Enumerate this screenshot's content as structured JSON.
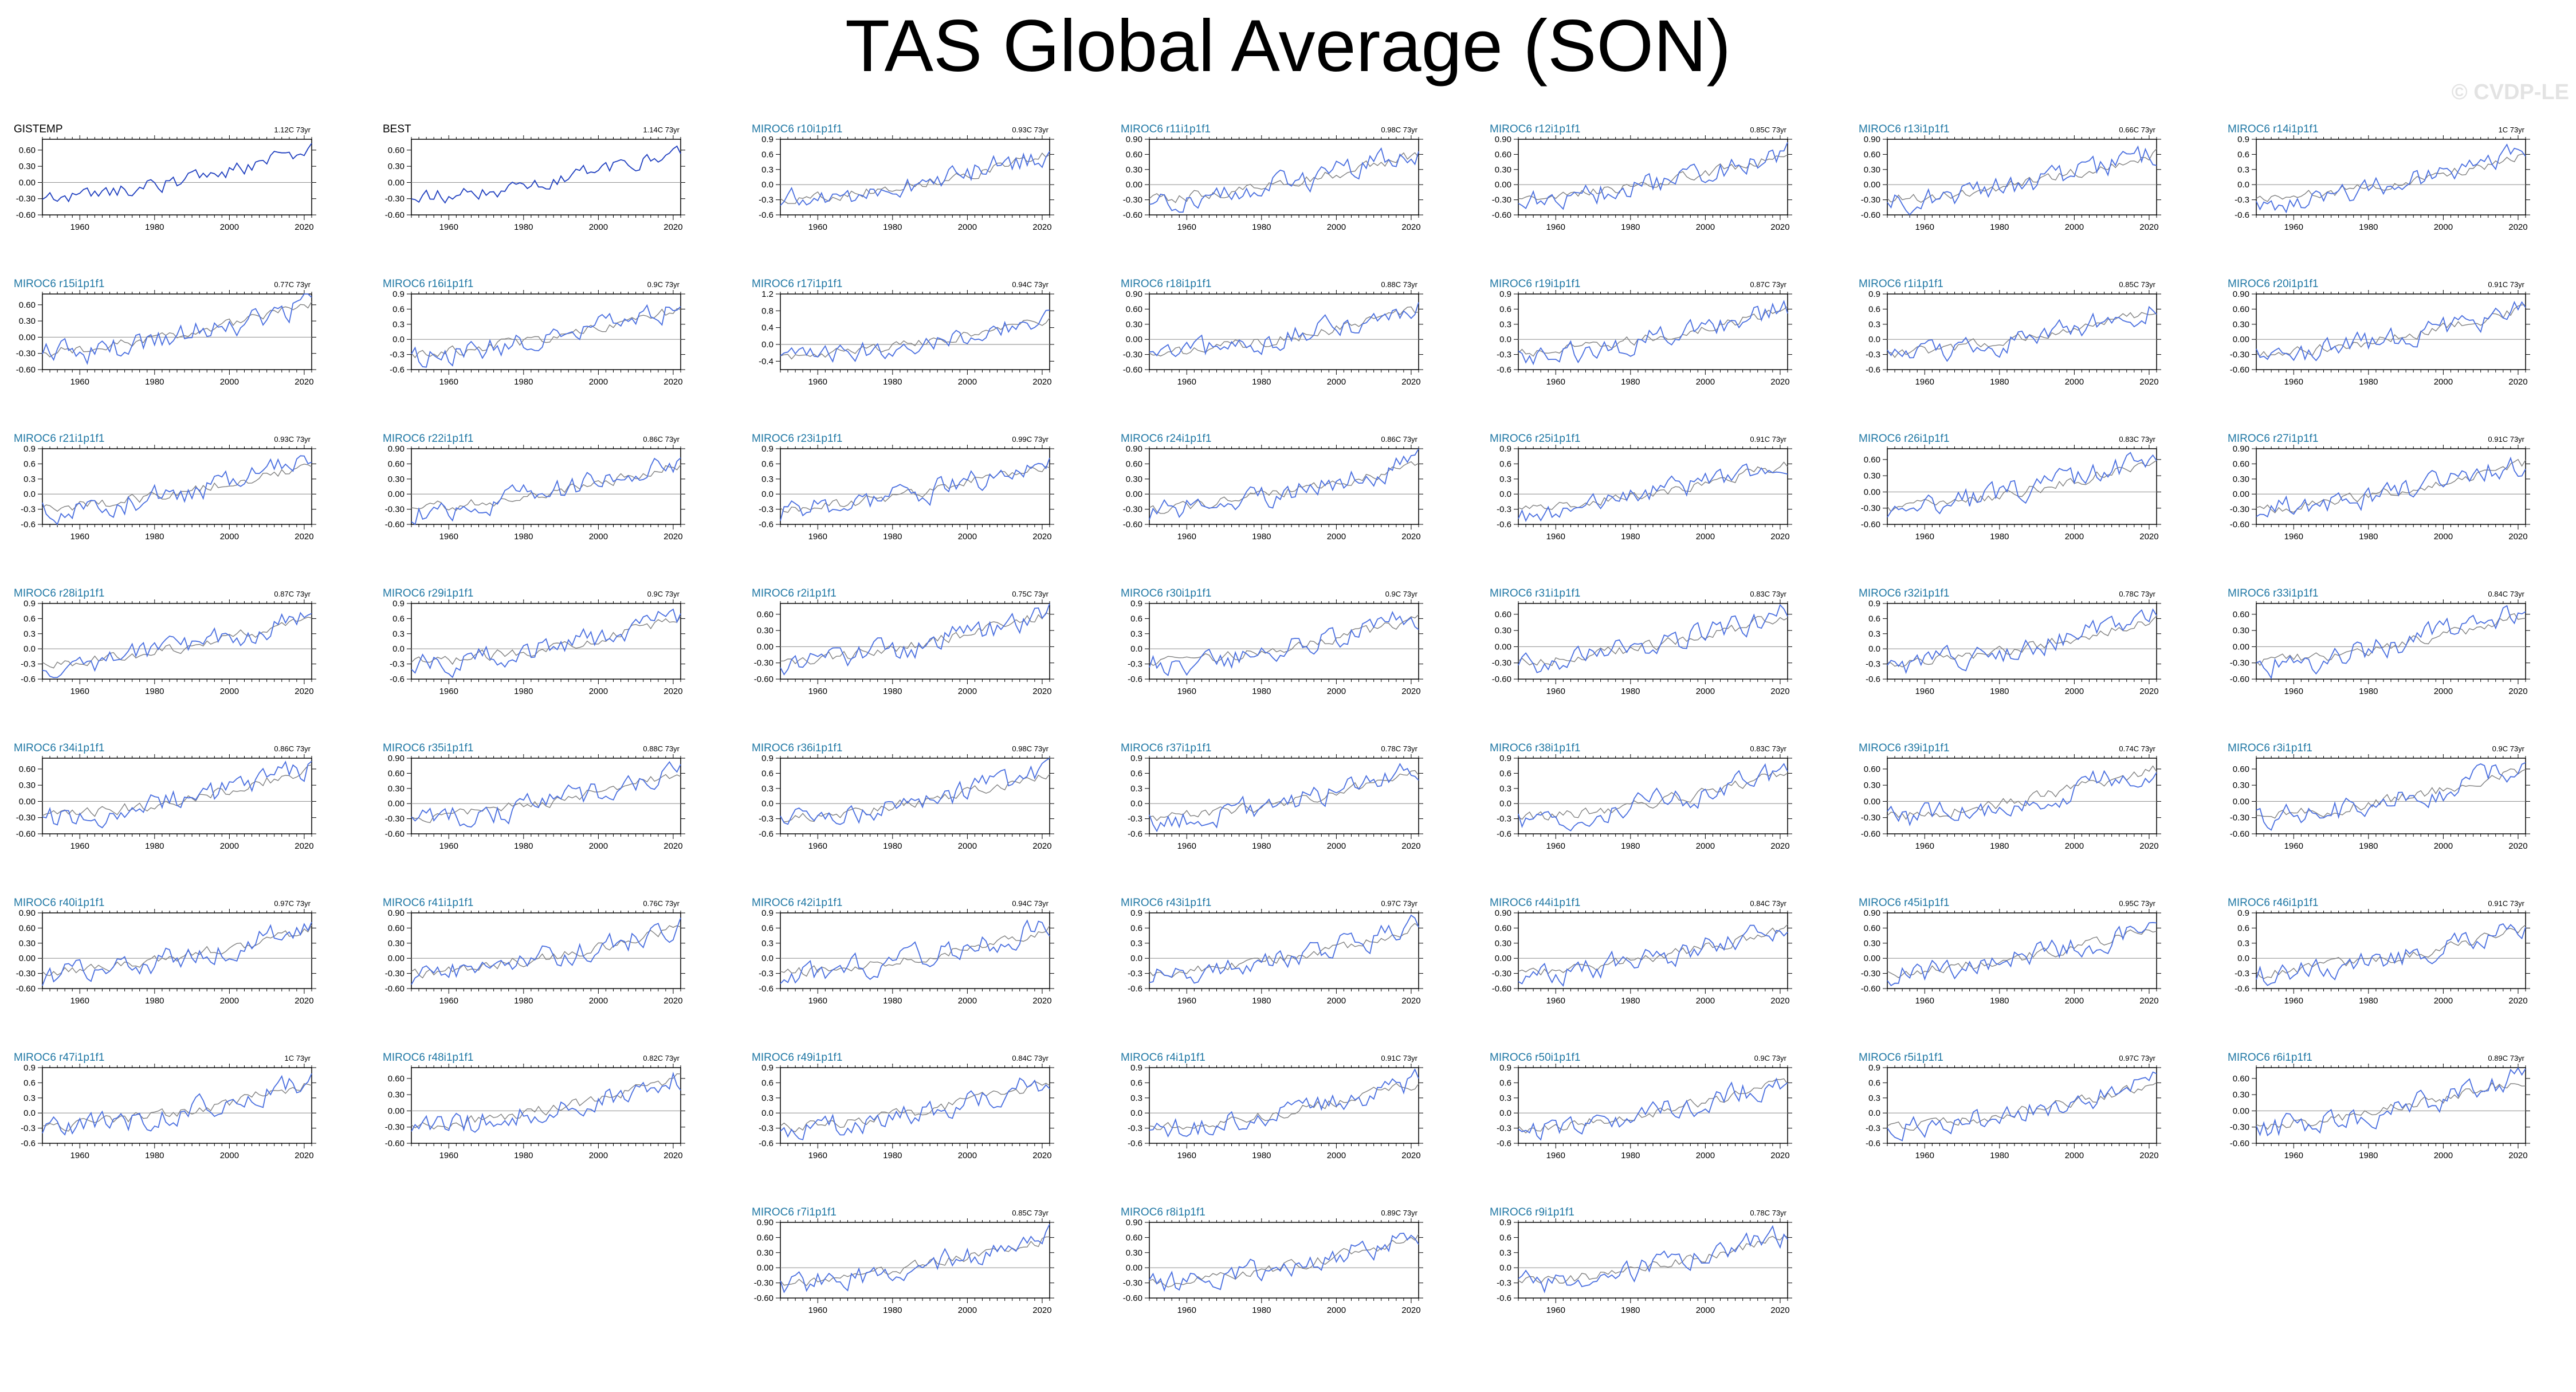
{
  "title": "TAS Global Average (SON)",
  "watermark": "© CVDP-LE",
  "colors": {
    "observed_line": "#1f3fbf",
    "model_line": "#4a6fe0",
    "ensemble_mean_line": "#808080",
    "zero_line": "#9a9a9a",
    "obs_title": "#000000",
    "model_title": "#1f77a4"
  },
  "x_ticks": [
    "1960",
    "1980",
    "2000",
    "2020"
  ],
  "chart_data": {
    "type": "line",
    "xlim": [
      1950,
      2022
    ],
    "grid": false,
    "panels": [
      {
        "title": "GISTEMP",
        "trend": "1.12C 73yr",
        "kind": "obs",
        "yticks": [
          "0.60",
          "0.30",
          "0.00",
          "-0.30",
          "-0.60"
        ],
        "ylim": [
          -0.6,
          0.8
        ]
      },
      {
        "title": "BEST",
        "trend": "1.14C 73yr",
        "kind": "obs",
        "yticks": [
          "0.60",
          "0.30",
          "0.00",
          "-0.30",
          "-0.60"
        ],
        "ylim": [
          -0.6,
          0.8
        ]
      },
      {
        "title": "MIROC6 r10i1p1f1",
        "trend": "0.93C 73yr",
        "kind": "model",
        "yticks": [
          "0.9",
          "0.6",
          "0.3",
          "0.0",
          "-0.3",
          "-0.6"
        ],
        "ylim": [
          -0.6,
          0.9
        ]
      },
      {
        "title": "MIROC6 r11i1p1f1",
        "trend": "0.98C 73yr",
        "kind": "model",
        "yticks": [
          "0.90",
          "0.60",
          "0.30",
          "0.00",
          "-0.30",
          "-0.60"
        ],
        "ylim": [
          -0.6,
          0.9
        ]
      },
      {
        "title": "MIROC6 r12i1p1f1",
        "trend": "0.85C 73yr",
        "kind": "model",
        "yticks": [
          "0.90",
          "0.60",
          "0.30",
          "0.00",
          "-0.30",
          "-0.60"
        ],
        "ylim": [
          -0.6,
          0.9
        ]
      },
      {
        "title": "MIROC6 r13i1p1f1",
        "trend": "0.66C 73yr",
        "kind": "model",
        "yticks": [
          "0.90",
          "0.60",
          "0.30",
          "0.00",
          "-0.30",
          "-0.60"
        ],
        "ylim": [
          -0.6,
          0.9
        ]
      },
      {
        "title": "MIROC6 r14i1p1f1",
        "trend": "1C 73yr",
        "kind": "model",
        "yticks": [
          "0.9",
          "0.6",
          "0.3",
          "0.0",
          "-0.3",
          "-0.6"
        ],
        "ylim": [
          -0.6,
          0.9
        ]
      },
      {
        "title": "MIROC6 r15i1p1f1",
        "trend": "0.77C 73yr",
        "kind": "model",
        "yticks": [
          "0.60",
          "0.30",
          "0.00",
          "-0.30",
          "-0.60"
        ],
        "ylim": [
          -0.6,
          0.8
        ]
      },
      {
        "title": "MIROC6 r16i1p1f1",
        "trend": "0.9C 73yr",
        "kind": "model",
        "yticks": [
          "0.9",
          "0.6",
          "0.3",
          "0.0",
          "-0.3",
          "-0.6"
        ],
        "ylim": [
          -0.6,
          0.9
        ]
      },
      {
        "title": "MIROC6 r17i1p1f1",
        "trend": "0.94C 73yr",
        "kind": "model",
        "yticks": [
          "1.2",
          "0.8",
          "0.4",
          "0.0",
          "-0.4"
        ],
        "ylim": [
          -0.6,
          1.2
        ]
      },
      {
        "title": "MIROC6 r18i1p1f1",
        "trend": "0.88C 73yr",
        "kind": "model",
        "yticks": [
          "0.90",
          "0.60",
          "0.30",
          "0.00",
          "-0.30",
          "-0.60"
        ],
        "ylim": [
          -0.6,
          0.9
        ]
      },
      {
        "title": "MIROC6 r19i1p1f1",
        "trend": "0.87C 73yr",
        "kind": "model",
        "yticks": [
          "0.9",
          "0.6",
          "0.3",
          "0.0",
          "-0.3",
          "-0.6"
        ],
        "ylim": [
          -0.6,
          0.9
        ]
      },
      {
        "title": "MIROC6 r1i1p1f1",
        "trend": "0.85C 73yr",
        "kind": "model",
        "yticks": [
          "0.9",
          "0.6",
          "0.3",
          "0.0",
          "-0.3",
          "-0.6"
        ],
        "ylim": [
          -0.6,
          0.9
        ]
      },
      {
        "title": "MIROC6 r20i1p1f1",
        "trend": "0.91C 73yr",
        "kind": "model",
        "yticks": [
          "0.90",
          "0.60",
          "0.30",
          "0.00",
          "-0.30",
          "-0.60"
        ],
        "ylim": [
          -0.6,
          0.9
        ]
      },
      {
        "title": "MIROC6 r21i1p1f1",
        "trend": "0.93C 73yr",
        "kind": "model",
        "yticks": [
          "0.9",
          "0.6",
          "0.3",
          "0.0",
          "-0.3",
          "-0.6"
        ],
        "ylim": [
          -0.6,
          0.9
        ]
      },
      {
        "title": "MIROC6 r22i1p1f1",
        "trend": "0.86C 73yr",
        "kind": "model",
        "yticks": [
          "0.90",
          "0.60",
          "0.30",
          "0.00",
          "-0.30",
          "-0.60"
        ],
        "ylim": [
          -0.6,
          0.9
        ]
      },
      {
        "title": "MIROC6 r23i1p1f1",
        "trend": "0.99C 73yr",
        "kind": "model",
        "yticks": [
          "0.9",
          "0.6",
          "0.3",
          "0.0",
          "-0.3",
          "-0.6"
        ],
        "ylim": [
          -0.6,
          0.9
        ]
      },
      {
        "title": "MIROC6 r24i1p1f1",
        "trend": "0.86C 73yr",
        "kind": "model",
        "yticks": [
          "0.90",
          "0.60",
          "0.30",
          "0.00",
          "-0.30",
          "-0.60"
        ],
        "ylim": [
          -0.6,
          0.9
        ]
      },
      {
        "title": "MIROC6 r25i1p1f1",
        "trend": "0.91C 73yr",
        "kind": "model",
        "yticks": [
          "0.9",
          "0.6",
          "0.3",
          "0.0",
          "-0.3",
          "-0.6"
        ],
        "ylim": [
          -0.6,
          0.9
        ]
      },
      {
        "title": "MIROC6 r26i1p1f1",
        "trend": "0.83C 73yr",
        "kind": "model",
        "yticks": [
          "0.60",
          "0.30",
          "0.00",
          "-0.30",
          "-0.60"
        ],
        "ylim": [
          -0.6,
          0.8
        ]
      },
      {
        "title": "MIROC6 r27i1p1f1",
        "trend": "0.91C 73yr",
        "kind": "model",
        "yticks": [
          "0.90",
          "0.60",
          "0.30",
          "0.00",
          "-0.30",
          "-0.60"
        ],
        "ylim": [
          -0.6,
          0.9
        ]
      },
      {
        "title": "MIROC6 r28i1p1f1",
        "trend": "0.87C 73yr",
        "kind": "model",
        "yticks": [
          "0.9",
          "0.6",
          "0.3",
          "0.0",
          "-0.3",
          "-0.6"
        ],
        "ylim": [
          -0.6,
          0.9
        ]
      },
      {
        "title": "MIROC6 r29i1p1f1",
        "trend": "0.9C 73yr",
        "kind": "model",
        "yticks": [
          "0.9",
          "0.6",
          "0.3",
          "0.0",
          "-0.3",
          "-0.6"
        ],
        "ylim": [
          -0.6,
          0.9
        ]
      },
      {
        "title": "MIROC6 r2i1p1f1",
        "trend": "0.75C 73yr",
        "kind": "model",
        "yticks": [
          "0.60",
          "0.30",
          "0.00",
          "-0.30",
          "-0.60"
        ],
        "ylim": [
          -0.6,
          0.8
        ]
      },
      {
        "title": "MIROC6 r30i1p1f1",
        "trend": "0.9C 73yr",
        "kind": "model",
        "yticks": [
          "0.9",
          "0.6",
          "0.3",
          "0.0",
          "-0.3",
          "-0.6"
        ],
        "ylim": [
          -0.6,
          0.9
        ]
      },
      {
        "title": "MIROC6 r31i1p1f1",
        "trend": "0.83C 73yr",
        "kind": "model",
        "yticks": [
          "0.60",
          "0.30",
          "0.00",
          "-0.30",
          "-0.60"
        ],
        "ylim": [
          -0.6,
          0.8
        ]
      },
      {
        "title": "MIROC6 r32i1p1f1",
        "trend": "0.78C 73yr",
        "kind": "model",
        "yticks": [
          "0.9",
          "0.6",
          "0.3",
          "0.0",
          "-0.3",
          "-0.6"
        ],
        "ylim": [
          -0.6,
          0.9
        ]
      },
      {
        "title": "MIROC6 r33i1p1f1",
        "trend": "0.84C 73yr",
        "kind": "model",
        "yticks": [
          "0.60",
          "0.30",
          "0.00",
          "-0.30",
          "-0.60"
        ],
        "ylim": [
          -0.6,
          0.8
        ]
      },
      {
        "title": "MIROC6 r34i1p1f1",
        "trend": "0.86C 73yr",
        "kind": "model",
        "yticks": [
          "0.60",
          "0.30",
          "0.00",
          "-0.30",
          "-0.60"
        ],
        "ylim": [
          -0.6,
          0.8
        ]
      },
      {
        "title": "MIROC6 r35i1p1f1",
        "trend": "0.88C 73yr",
        "kind": "model",
        "yticks": [
          "0.90",
          "0.60",
          "0.30",
          "0.00",
          "-0.30",
          "-0.60"
        ],
        "ylim": [
          -0.6,
          0.9
        ]
      },
      {
        "title": "MIROC6 r36i1p1f1",
        "trend": "0.98C 73yr",
        "kind": "model",
        "yticks": [
          "0.9",
          "0.6",
          "0.3",
          "0.0",
          "-0.3",
          "-0.6"
        ],
        "ylim": [
          -0.6,
          0.9
        ]
      },
      {
        "title": "MIROC6 r37i1p1f1",
        "trend": "0.78C 73yr",
        "kind": "model",
        "yticks": [
          "0.9",
          "0.6",
          "0.3",
          "0.0",
          "-0.3",
          "-0.6"
        ],
        "ylim": [
          -0.6,
          0.9
        ]
      },
      {
        "title": "MIROC6 r38i1p1f1",
        "trend": "0.83C 73yr",
        "kind": "model",
        "yticks": [
          "0.9",
          "0.6",
          "0.3",
          "0.0",
          "-0.3",
          "-0.6"
        ],
        "ylim": [
          -0.6,
          0.9
        ]
      },
      {
        "title": "MIROC6 r39i1p1f1",
        "trend": "0.74C 73yr",
        "kind": "model",
        "yticks": [
          "0.60",
          "0.30",
          "0.00",
          "-0.30",
          "-0.60"
        ],
        "ylim": [
          -0.6,
          0.8
        ]
      },
      {
        "title": "MIROC6 r3i1p1f1",
        "trend": "0.9C 73yr",
        "kind": "model",
        "yticks": [
          "0.60",
          "0.30",
          "0.00",
          "-0.30",
          "-0.60"
        ],
        "ylim": [
          -0.6,
          0.8
        ]
      },
      {
        "title": "MIROC6 r40i1p1f1",
        "trend": "0.97C 73yr",
        "kind": "model",
        "yticks": [
          "0.90",
          "0.60",
          "0.30",
          "0.00",
          "-0.30",
          "-0.60"
        ],
        "ylim": [
          -0.6,
          0.9
        ]
      },
      {
        "title": "MIROC6 r41i1p1f1",
        "trend": "0.76C 73yr",
        "kind": "model",
        "yticks": [
          "0.90",
          "0.60",
          "0.30",
          "0.00",
          "-0.30",
          "-0.60"
        ],
        "ylim": [
          -0.6,
          0.9
        ]
      },
      {
        "title": "MIROC6 r42i1p1f1",
        "trend": "0.94C 73yr",
        "kind": "model",
        "yticks": [
          "0.9",
          "0.6",
          "0.3",
          "0.0",
          "-0.3",
          "-0.6"
        ],
        "ylim": [
          -0.6,
          0.9
        ]
      },
      {
        "title": "MIROC6 r43i1p1f1",
        "trend": "0.97C 73yr",
        "kind": "model",
        "yticks": [
          "0.9",
          "0.6",
          "0.3",
          "0.0",
          "-0.3",
          "-0.6"
        ],
        "ylim": [
          -0.6,
          0.9
        ]
      },
      {
        "title": "MIROC6 r44i1p1f1",
        "trend": "0.84C 73yr",
        "kind": "model",
        "yticks": [
          "0.90",
          "0.60",
          "0.30",
          "0.00",
          "-0.30",
          "-0.60"
        ],
        "ylim": [
          -0.6,
          0.9
        ]
      },
      {
        "title": "MIROC6 r45i1p1f1",
        "trend": "0.95C 73yr",
        "kind": "model",
        "yticks": [
          "0.90",
          "0.60",
          "0.30",
          "0.00",
          "-0.30",
          "-0.60"
        ],
        "ylim": [
          -0.6,
          0.9
        ]
      },
      {
        "title": "MIROC6 r46i1p1f1",
        "trend": "0.91C 73yr",
        "kind": "model",
        "yticks": [
          "0.9",
          "0.6",
          "0.3",
          "0.0",
          "-0.3",
          "-0.6"
        ],
        "ylim": [
          -0.6,
          0.9
        ]
      },
      {
        "title": "MIROC6 r47i1p1f1",
        "trend": "1C 73yr",
        "kind": "model",
        "yticks": [
          "0.9",
          "0.6",
          "0.3",
          "0.0",
          "-0.3",
          "-0.6"
        ],
        "ylim": [
          -0.6,
          0.9
        ]
      },
      {
        "title": "MIROC6 r48i1p1f1",
        "trend": "0.82C 73yr",
        "kind": "model",
        "yticks": [
          "0.60",
          "0.30",
          "0.00",
          "-0.30",
          "-0.60"
        ],
        "ylim": [
          -0.6,
          0.8
        ]
      },
      {
        "title": "MIROC6 r49i1p1f1",
        "trend": "0.84C 73yr",
        "kind": "model",
        "yticks": [
          "0.9",
          "0.6",
          "0.3",
          "0.0",
          "-0.3",
          "-0.6"
        ],
        "ylim": [
          -0.6,
          0.9
        ]
      },
      {
        "title": "MIROC6 r4i1p1f1",
        "trend": "0.91C 73yr",
        "kind": "model",
        "yticks": [
          "0.9",
          "0.6",
          "0.3",
          "0.0",
          "-0.3",
          "-0.6"
        ],
        "ylim": [
          -0.6,
          0.9
        ]
      },
      {
        "title": "MIROC6 r50i1p1f1",
        "trend": "0.9C 73yr",
        "kind": "model",
        "yticks": [
          "0.9",
          "0.6",
          "0.3",
          "0.0",
          "-0.3",
          "-0.6"
        ],
        "ylim": [
          -0.6,
          0.9
        ]
      },
      {
        "title": "MIROC6 r5i1p1f1",
        "trend": "0.97C 73yr",
        "kind": "model",
        "yticks": [
          "0.9",
          "0.6",
          "0.3",
          "0.0",
          "-0.3",
          "-0.6"
        ],
        "ylim": [
          -0.6,
          0.9
        ]
      },
      {
        "title": "MIROC6 r6i1p1f1",
        "trend": "0.89C 73yr",
        "kind": "model",
        "yticks": [
          "0.60",
          "0.30",
          "0.00",
          "-0.30",
          "-0.60"
        ],
        "ylim": [
          -0.6,
          0.8
        ]
      },
      {
        "title": "MIROC6 r7i1p1f1",
        "trend": "0.85C 73yr",
        "kind": "model",
        "yticks": [
          "0.90",
          "0.60",
          "0.30",
          "0.00",
          "-0.30",
          "-0.60"
        ],
        "ylim": [
          -0.6,
          0.9
        ]
      },
      {
        "title": "MIROC6 r8i1p1f1",
        "trend": "0.89C 73yr",
        "kind": "model",
        "yticks": [
          "0.90",
          "0.60",
          "0.30",
          "0.00",
          "-0.30",
          "-0.60"
        ],
        "ylim": [
          -0.6,
          0.9
        ]
      },
      {
        "title": "MIROC6 r9i1p1f1",
        "trend": "0.78C 73yr",
        "kind": "model",
        "yticks": [
          "0.9",
          "0.6",
          "0.3",
          "0.0",
          "-0.3",
          "-0.6"
        ],
        "ylim": [
          -0.6,
          0.9
        ]
      }
    ],
    "series_model": {
      "x_start": 1950,
      "x_end": 2022,
      "start_value": -0.35,
      "end_value": 0.65
    },
    "series_ensemble_mean": {
      "x_start": 1950,
      "x_end": 2022,
      "start_value": -0.3,
      "end_value": 0.6
    }
  }
}
